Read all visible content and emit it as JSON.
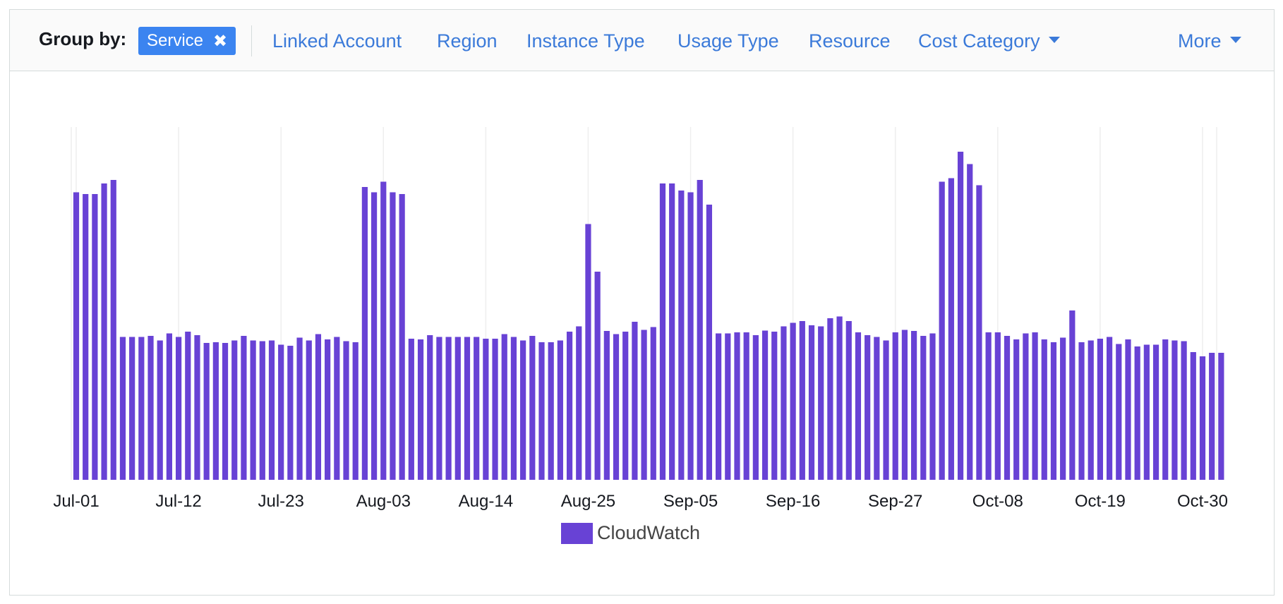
{
  "toolbar": {
    "group_by_label": "Group by:",
    "selected_chip": "Service",
    "options": [
      "Linked Account",
      "Region",
      "Instance Type",
      "Usage Type",
      "Resource",
      "Cost Category"
    ],
    "more_label": "More"
  },
  "colors": {
    "bar": "#6842d5",
    "link": "#3b7ad9",
    "chip": "#3b84f0",
    "grid": "#eeeeee"
  },
  "chart_data": {
    "type": "bar",
    "grid": true,
    "legend_position": "bottom-center",
    "ylim": [
      0,
      100
    ],
    "ticks": [
      "Jul-01",
      "Jul-12",
      "Jul-23",
      "Aug-03",
      "Aug-14",
      "Aug-25",
      "Sep-05",
      "Sep-16",
      "Sep-27",
      "Oct-08",
      "Oct-19",
      "Oct-30"
    ],
    "series": [
      {
        "name": "CloudWatch",
        "values": [
          81.5,
          81,
          81,
          84,
          85,
          40.5,
          40.5,
          40.5,
          40.8,
          39.5,
          41.5,
          40.5,
          42,
          41,
          38.8,
          39,
          38.8,
          39.5,
          40.8,
          39.5,
          39.3,
          39.5,
          38.3,
          38,
          40.3,
          39.5,
          41.3,
          39.8,
          40.5,
          39.3,
          39,
          83,
          81.5,
          84.5,
          81.5,
          81,
          40,
          39.8,
          41,
          40.5,
          40.5,
          40.5,
          40.5,
          40.5,
          40,
          40,
          41.3,
          40.5,
          39.5,
          40.8,
          39,
          39,
          39.5,
          42,
          43.5,
          72.5,
          59,
          42.2,
          41.3,
          42,
          44.8,
          42.5,
          43.3,
          84,
          84,
          82,
          81.5,
          85,
          78,
          41.5,
          41.5,
          41.8,
          41.8,
          41,
          42.3,
          42,
          43.5,
          44.5,
          45,
          43.8,
          43.5,
          45.8,
          46.3,
          45,
          41.8,
          41,
          40.5,
          39.5,
          41.8,
          42.5,
          42.2,
          40.8,
          41.5,
          84.5,
          85.5,
          93,
          89.5,
          83.5,
          41.8,
          41.8,
          40.8,
          39.8,
          41.5,
          41.8,
          39.8,
          39,
          40.3,
          48,
          39,
          39.5,
          40,
          40.5,
          38.5,
          39.8,
          37.8,
          38.3,
          38.3,
          39.8,
          39.5,
          39.3,
          36.2,
          35,
          36,
          36
        ]
      }
    ]
  }
}
